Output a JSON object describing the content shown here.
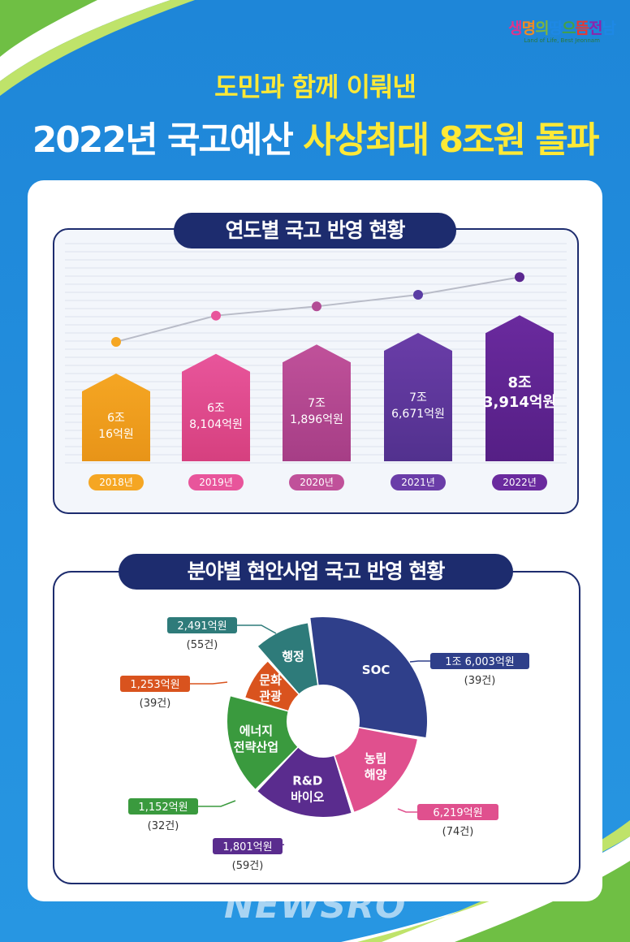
{
  "logo": {
    "text": "생명의 땅 으뜸 전남",
    "subtitle": "Land of Life, Best Jeonnam"
  },
  "headline": {
    "line1": "도민과 함께 이뤄낸",
    "line2_white": "2022년 국고예산",
    "line2_yellow": "사상최대 8조원 돌파"
  },
  "watermark": "NEWSRO",
  "chart_data": [
    {
      "type": "bar",
      "title": "연도별 국고 반영 현황",
      "categories": [
        "2018년",
        "2019년",
        "2020년",
        "2021년",
        "2022년"
      ],
      "values": [
        60016,
        68104,
        71896,
        76671,
        83914
      ],
      "unit": "억원",
      "data_labels": [
        [
          "6조",
          "16억원"
        ],
        [
          "6조",
          "8,104억원"
        ],
        [
          "7조",
          "1,896억원"
        ],
        [
          "7조",
          "6,671억원"
        ],
        [
          "8조",
          "3,914억원"
        ]
      ],
      "colors": [
        "#f5a623",
        "#e8559b",
        "#c0519a",
        "#6a3da8",
        "#6a2a9e"
      ],
      "trend_line": true
    },
    {
      "type": "pie",
      "style": "donut",
      "title": "분야별 현안사업 국고 반영 현황",
      "slices": [
        {
          "label": "SOC",
          "value": 16003,
          "amount": "1조 6,003억원",
          "count": "(39건)",
          "color": "#2f3f8a"
        },
        {
          "label": "농림·해양",
          "value": 6219,
          "amount": "6,219억원",
          "count": "(74건)",
          "color": "#e0508e"
        },
        {
          "label": "R&D·바이오",
          "value": 1801,
          "amount": "1,801억원",
          "count": "(59건)",
          "color": "#5a2c8e"
        },
        {
          "label": "에너지 전략산업",
          "value": 1152,
          "amount": "1,152억원",
          "count": "(32건)",
          "color": "#3a9a3e"
        },
        {
          "label": "문화·관광",
          "value": 1253,
          "amount": "1,253억원",
          "count": "(39건)",
          "color": "#d9531e"
        },
        {
          "label": "행정",
          "value": 2491,
          "amount": "2,491억원",
          "count": "(55건)",
          "color": "#2e7b7a"
        }
      ]
    }
  ]
}
